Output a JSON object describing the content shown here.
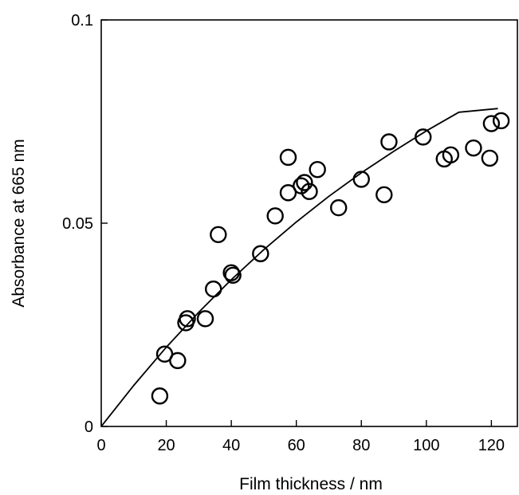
{
  "chart_data": {
    "type": "scatter",
    "xlabel": "Film thickness / nm",
    "ylabel": "Absorbance at 665 nm",
    "xlim": [
      0,
      128
    ],
    "ylim": [
      0,
      0.1
    ],
    "grid": false,
    "x_ticks": [
      0,
      20,
      40,
      60,
      80,
      100,
      120
    ],
    "x_tick_labels": [
      "0",
      "20",
      "40",
      "60",
      "80",
      "100",
      "120"
    ],
    "y_ticks": [
      0,
      0.05,
      0.1
    ],
    "y_tick_labels": [
      "0",
      "0.05",
      "0.1"
    ],
    "points": [
      {
        "x": 18,
        "y": 0.0075
      },
      {
        "x": 19.5,
        "y": 0.0178
      },
      {
        "x": 23.5,
        "y": 0.0162
      },
      {
        "x": 26,
        "y": 0.0255
      },
      {
        "x": 26.5,
        "y": 0.0265
      },
      {
        "x": 32,
        "y": 0.0265
      },
      {
        "x": 34.5,
        "y": 0.0338
      },
      {
        "x": 36,
        "y": 0.0472
      },
      {
        "x": 40,
        "y": 0.0378
      },
      {
        "x": 40.5,
        "y": 0.0372
      },
      {
        "x": 49,
        "y": 0.0425
      },
      {
        "x": 53.5,
        "y": 0.0518
      },
      {
        "x": 57.5,
        "y": 0.0662
      },
      {
        "x": 57.5,
        "y": 0.0575
      },
      {
        "x": 61.5,
        "y": 0.0592
      },
      {
        "x": 62.5,
        "y": 0.06
      },
      {
        "x": 64,
        "y": 0.0578
      },
      {
        "x": 66.5,
        "y": 0.0632
      },
      {
        "x": 73,
        "y": 0.0538
      },
      {
        "x": 80,
        "y": 0.0608
      },
      {
        "x": 87,
        "y": 0.057
      },
      {
        "x": 88.5,
        "y": 0.07
      },
      {
        "x": 99,
        "y": 0.0712
      },
      {
        "x": 105.5,
        "y": 0.0658
      },
      {
        "x": 107.5,
        "y": 0.0668
      },
      {
        "x": 114.5,
        "y": 0.0685
      },
      {
        "x": 119.5,
        "y": 0.066
      },
      {
        "x": 120,
        "y": 0.0745
      },
      {
        "x": 123,
        "y": 0.0752
      }
    ],
    "fit_curve": [
      {
        "x": 0,
        "y": 0.0
      },
      {
        "x": 10,
        "y": 0.0101
      },
      {
        "x": 20,
        "y": 0.0195
      },
      {
        "x": 30,
        "y": 0.0281
      },
      {
        "x": 40,
        "y": 0.0361
      },
      {
        "x": 50,
        "y": 0.0435
      },
      {
        "x": 60,
        "y": 0.0503
      },
      {
        "x": 70,
        "y": 0.0566
      },
      {
        "x": 80,
        "y": 0.0624
      },
      {
        "x": 90,
        "y": 0.0677
      },
      {
        "x": 100,
        "y": 0.0727
      },
      {
        "x": 110,
        "y": 0.0773
      },
      {
        "x": 122,
        "y": 0.0782
      }
    ]
  }
}
